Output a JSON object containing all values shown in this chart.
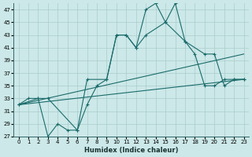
{
  "xlabel": "Humidex (Indice chaleur)",
  "background_color": "#cce8e8",
  "line_color": "#1a6b6b",
  "grid_color": "#aacccc",
  "xlim": [
    0,
    23
  ],
  "ylim": [
    27,
    48
  ],
  "yticks": [
    27,
    29,
    31,
    33,
    35,
    37,
    39,
    41,
    43,
    45,
    47
  ],
  "xticks": [
    0,
    1,
    2,
    3,
    4,
    5,
    6,
    7,
    8,
    9,
    10,
    11,
    12,
    13,
    14,
    15,
    16,
    17,
    18,
    19,
    20,
    21,
    22,
    23
  ],
  "line1_x": [
    0,
    1,
    2,
    3,
    4,
    5,
    6,
    7,
    8,
    9,
    10,
    11,
    12,
    13,
    14,
    15,
    16,
    17,
    18,
    19,
    20,
    21,
    22,
    23
  ],
  "line1_y": [
    32,
    33,
    33,
    27,
    29,
    28,
    28,
    32,
    35,
    36,
    43,
    43,
    41,
    47,
    48,
    45,
    48,
    42,
    40,
    35,
    35,
    36,
    36,
    36
  ],
  "line2_x": [
    0,
    2,
    3,
    6,
    7,
    9,
    10,
    11,
    12,
    13,
    15,
    17,
    19,
    20,
    21,
    22,
    23
  ],
  "line2_y": [
    32,
    33,
    33,
    28,
    36,
    36,
    43,
    43,
    41,
    43,
    45,
    42,
    40,
    40,
    35,
    36,
    36
  ],
  "line3_x": [
    0,
    23
  ],
  "line3_y": [
    32,
    40
  ],
  "line4_x": [
    0,
    23
  ],
  "line4_y": [
    32,
    36
  ]
}
